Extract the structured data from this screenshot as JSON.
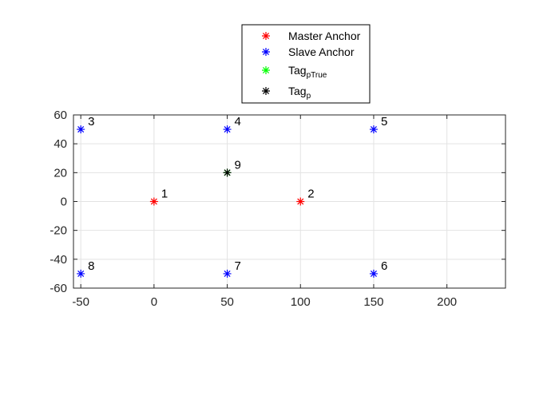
{
  "chart_data": {
    "type": "scatter",
    "xlim": [
      -55,
      240
    ],
    "ylim": [
      -60,
      60
    ],
    "xticks": [
      -50,
      0,
      50,
      100,
      150,
      200
    ],
    "yticks": [
      60,
      40,
      20,
      0,
      -20,
      -40,
      -60
    ],
    "grid": true,
    "legend_placement": "top-center, outside axes",
    "series": [
      {
        "name": "Master Anchor",
        "color": "#ff0000",
        "marker": "asterisk",
        "points": [
          {
            "x": 0,
            "y": 0,
            "label": "1"
          },
          {
            "x": 100,
            "y": 0,
            "label": "2"
          }
        ]
      },
      {
        "name": "Slave Anchor",
        "color": "#0000ff",
        "marker": "asterisk",
        "points": [
          {
            "x": -50,
            "y": 50,
            "label": "3"
          },
          {
            "x": 50,
            "y": 50,
            "label": "4"
          },
          {
            "x": 150,
            "y": 50,
            "label": "5"
          },
          {
            "x": 150,
            "y": -50,
            "label": "6"
          },
          {
            "x": 50,
            "y": -50,
            "label": "7"
          },
          {
            "x": -50,
            "y": -50,
            "label": "8"
          }
        ]
      },
      {
        "name": "Tag",
        "name_subscript": "pTrue",
        "color": "#00ff00",
        "marker": "asterisk",
        "points": [
          {
            "x": 50,
            "y": 20,
            "label": ""
          }
        ]
      },
      {
        "name": "Tag",
        "name_subscript": "p",
        "color": "#000000",
        "marker": "asterisk",
        "points": [
          {
            "x": 50,
            "y": 20,
            "label": "9"
          }
        ]
      }
    ]
  }
}
